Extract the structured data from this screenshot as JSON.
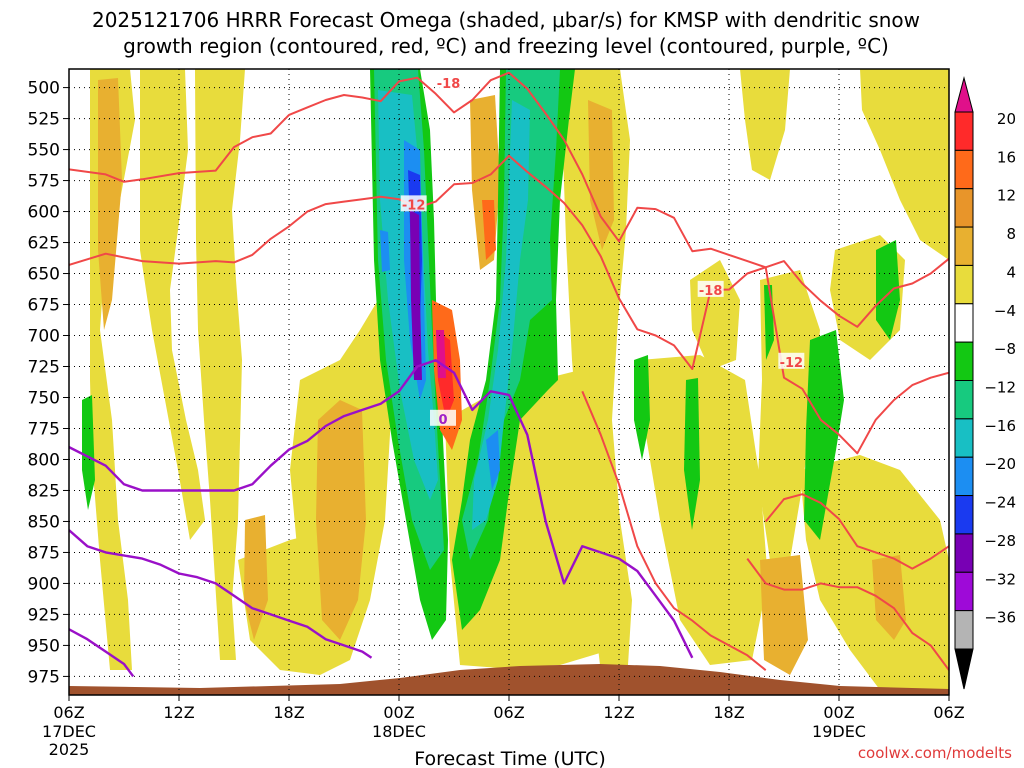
{
  "chart_data": {
    "type": "contour",
    "title_line1": "2025121706 HRRR Forecast Omega (shaded, μbar/s) for KMSP with dendritic snow",
    "title_line2": "growth region (contoured, red, ºC) and freezing level (contoured, purple, ºC)",
    "xlabel": "Forecast Time (UTC)",
    "watermark": "coolwx.com/modelts",
    "x_ticks": [
      {
        "hour": 0,
        "label": "06Z",
        "sub1": "17DEC",
        "sub2": "2025"
      },
      {
        "hour": 6,
        "label": "12Z"
      },
      {
        "hour": 12,
        "label": "18Z"
      },
      {
        "hour": 18,
        "label": "00Z",
        "sub1": "18DEC"
      },
      {
        "hour": 24,
        "label": "06Z"
      },
      {
        "hour": 30,
        "label": "12Z"
      },
      {
        "hour": 36,
        "label": "18Z"
      },
      {
        "hour": 42,
        "label": "00Z",
        "sub1": "19DEC"
      },
      {
        "hour": 48,
        "label": "06Z"
      }
    ],
    "x_range_hours": [
      0,
      48
    ],
    "y_levels_mb": [
      500,
      525,
      550,
      575,
      600,
      625,
      650,
      675,
      700,
      725,
      750,
      775,
      800,
      825,
      850,
      875,
      900,
      925,
      950,
      975
    ],
    "y_range_mb": [
      485,
      990
    ],
    "colorbar": {
      "labels": [
        "20",
        "16",
        "12",
        "8",
        "4",
        "−4",
        "−8",
        "−12",
        "−16",
        "−20",
        "−24",
        "−28",
        "−32",
        "−36"
      ],
      "colors": [
        "#ff2a2a",
        "#ff6a1a",
        "#e8952a",
        "#e8b030",
        "#e8dc3c",
        "#ffffff",
        "#13c813",
        "#17ca7f",
        "#18bfc4",
        "#1c8ef2",
        "#1a3af0",
        "#7800b4",
        "#9e0ad8",
        "#b4b4b4"
      ],
      "top_color": "#e0108a",
      "bottom_color": "#000000"
    },
    "contour_labels": [
      {
        "text": "-18",
        "hour": 20.7,
        "mb": 497,
        "color": "#f04848"
      },
      {
        "text": "-12",
        "hour": 18.8,
        "mb": 595,
        "color": "#f04848"
      },
      {
        "text": "-18",
        "hour": 35.0,
        "mb": 664,
        "color": "#f04848"
      },
      {
        "text": "-12",
        "hour": 39.4,
        "mb": 722,
        "color": "#f04848"
      },
      {
        "text": "0",
        "hour": 20.4,
        "mb": 768,
        "color": "#a020c8"
      }
    ],
    "red_contours": [
      {
        "name": "dgz-upper-18",
        "points": [
          [
            0,
            643
          ],
          [
            2,
            634
          ],
          [
            4,
            640
          ],
          [
            6,
            642
          ],
          [
            8,
            640
          ],
          [
            9,
            641
          ],
          [
            10,
            635
          ],
          [
            11,
            622
          ],
          [
            12,
            612
          ],
          [
            13,
            600
          ],
          [
            14,
            594
          ],
          [
            15,
            592
          ],
          [
            16,
            590
          ],
          [
            17,
            588
          ],
          [
            18,
            590
          ],
          [
            19,
            597
          ],
          [
            20,
            592
          ],
          [
            21,
            578
          ],
          [
            22,
            577
          ],
          [
            23,
            570
          ],
          [
            24,
            555
          ],
          [
            25,
            568
          ],
          [
            26,
            580
          ],
          [
            27,
            593
          ],
          [
            28,
            611
          ],
          [
            29,
            636
          ],
          [
            30,
            670
          ],
          [
            31,
            695
          ],
          [
            32,
            700
          ],
          [
            33,
            708
          ],
          [
            34,
            727
          ],
          [
            35,
            663
          ],
          [
            36,
            663
          ],
          [
            37,
            650
          ],
          [
            38,
            645
          ],
          [
            39,
            640
          ],
          [
            40,
            658
          ],
          [
            41,
            672
          ],
          [
            42,
            684
          ],
          [
            43,
            693
          ],
          [
            44,
            676
          ],
          [
            45,
            662
          ],
          [
            46,
            658
          ],
          [
            47,
            650
          ],
          [
            48,
            638
          ]
        ]
      },
      {
        "name": "dgz-lower-12",
        "points": [
          [
            0,
            566
          ],
          [
            2,
            570
          ],
          [
            3,
            576
          ],
          [
            4,
            574
          ],
          [
            6,
            569
          ],
          [
            7,
            568
          ],
          [
            8,
            567
          ],
          [
            9,
            548
          ],
          [
            10,
            540
          ],
          [
            11,
            537
          ],
          [
            12,
            522
          ],
          [
            13,
            516
          ],
          [
            14,
            510
          ],
          [
            15,
            506
          ],
          [
            16,
            508
          ],
          [
            17,
            511
          ],
          [
            18,
            495
          ],
          [
            19,
            492
          ],
          [
            20,
            505
          ],
          [
            21,
            520
          ],
          [
            22,
            510
          ],
          [
            23,
            494
          ],
          [
            24,
            488
          ],
          [
            25,
            501
          ],
          [
            26,
            521
          ],
          [
            27,
            542
          ],
          [
            28,
            570
          ],
          [
            29,
            604
          ],
          [
            30,
            624
          ],
          [
            31,
            597
          ],
          [
            32,
            598
          ],
          [
            33,
            605
          ],
          [
            34,
            632
          ],
          [
            35,
            630
          ],
          [
            36,
            635
          ],
          [
            37,
            640
          ],
          [
            38,
            645
          ],
          [
            39,
            734
          ],
          [
            40,
            743
          ],
          [
            41,
            768
          ],
          [
            42,
            780
          ],
          [
            43,
            795
          ],
          [
            44,
            768
          ],
          [
            45,
            752
          ],
          [
            46,
            740
          ],
          [
            47,
            734
          ],
          [
            48,
            730
          ]
        ]
      },
      {
        "name": "dgz-12-lower",
        "points": [
          [
            28,
            745
          ],
          [
            29,
            780
          ],
          [
            30,
            820
          ],
          [
            31,
            870
          ],
          [
            32,
            900
          ],
          [
            33,
            920
          ],
          [
            34,
            930
          ],
          [
            35,
            942
          ],
          [
            36,
            950
          ],
          [
            37,
            958
          ],
          [
            38,
            970
          ]
        ]
      },
      {
        "name": "dgz-18-lower",
        "points": [
          [
            37,
            880
          ],
          [
            38,
            900
          ],
          [
            39,
            905
          ],
          [
            40,
            905
          ],
          [
            41,
            900
          ],
          [
            42,
            903
          ],
          [
            43,
            903
          ],
          [
            44,
            910
          ],
          [
            45,
            920
          ],
          [
            46,
            940
          ],
          [
            47,
            950
          ],
          [
            48,
            970
          ]
        ]
      },
      {
        "name": "dgz-right-12",
        "points": [
          [
            38,
            850
          ],
          [
            39,
            832
          ],
          [
            40,
            828
          ],
          [
            41,
            835
          ],
          [
            42,
            848
          ],
          [
            43,
            870
          ],
          [
            44,
            875
          ],
          [
            45,
            880
          ],
          [
            46,
            888
          ],
          [
            47,
            880
          ],
          [
            48,
            870
          ]
        ]
      }
    ],
    "purple_contours": [
      {
        "name": "freezing-upper",
        "points": [
          [
            0,
            790
          ],
          [
            2,
            805
          ],
          [
            3,
            820
          ],
          [
            4,
            825
          ],
          [
            6,
            825
          ],
          [
            7,
            825
          ],
          [
            8,
            825
          ],
          [
            9,
            825
          ],
          [
            10,
            820
          ],
          [
            11,
            805
          ],
          [
            12,
            792
          ],
          [
            13,
            785
          ],
          [
            14,
            773
          ],
          [
            15,
            765
          ],
          [
            16,
            760
          ],
          [
            17,
            755
          ],
          [
            18,
            745
          ],
          [
            19,
            725
          ],
          [
            20,
            720
          ],
          [
            21,
            730
          ],
          [
            22,
            760
          ],
          [
            23,
            745
          ],
          [
            24,
            748
          ],
          [
            25,
            780
          ],
          [
            26,
            850
          ],
          [
            27,
            900
          ],
          [
            28,
            870
          ],
          [
            29,
            875
          ],
          [
            30,
            880
          ],
          [
            31,
            890
          ],
          [
            32,
            910
          ],
          [
            33,
            930
          ],
          [
            34,
            960
          ]
        ]
      },
      {
        "name": "freezing-lower",
        "points": [
          [
            0,
            857
          ],
          [
            1,
            870
          ],
          [
            2,
            875
          ],
          [
            4,
            880
          ],
          [
            5,
            885
          ],
          [
            6,
            892
          ],
          [
            7,
            895
          ],
          [
            8,
            900
          ],
          [
            9,
            910
          ],
          [
            10,
            920
          ],
          [
            11,
            925
          ],
          [
            12,
            930
          ],
          [
            13,
            935
          ],
          [
            14,
            945
          ],
          [
            15,
            950
          ],
          [
            16,
            955
          ],
          [
            16.5,
            960
          ]
        ]
      },
      {
        "name": "freezing-bottom-left",
        "points": [
          [
            0,
            937
          ],
          [
            1,
            945
          ],
          [
            2,
            955
          ],
          [
            3,
            965
          ],
          [
            3.5,
            975
          ]
        ]
      }
    ]
  }
}
